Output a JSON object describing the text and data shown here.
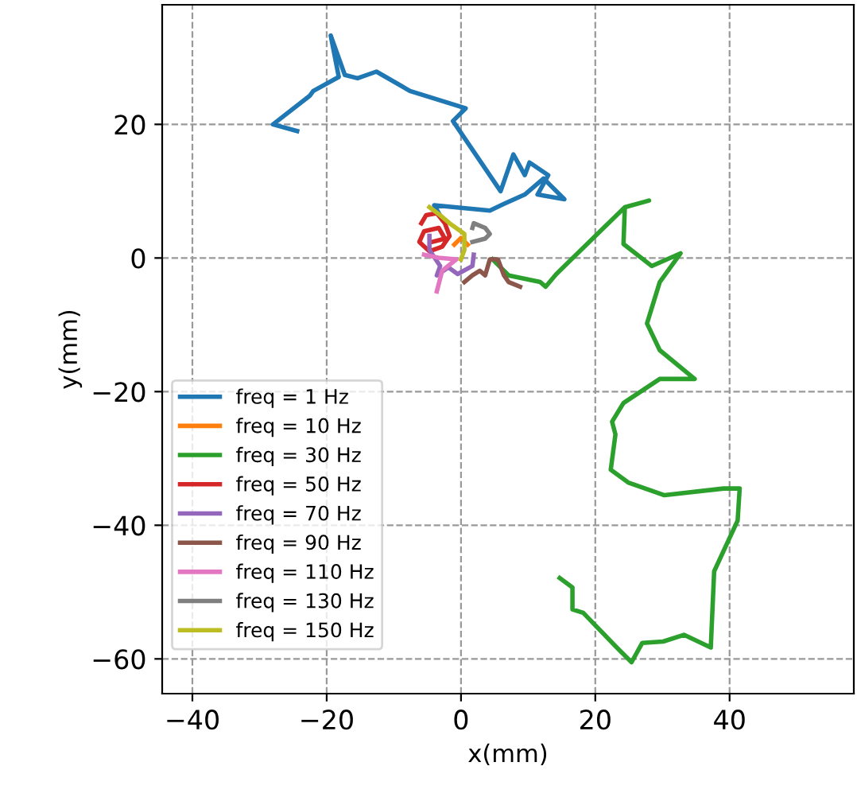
{
  "chart_data": {
    "type": "line",
    "xlabel": "x(mm)",
    "ylabel": "y(mm)",
    "xlim": [
      -44.5,
      58.5
    ],
    "ylim": [
      -65.2,
      37.9
    ],
    "xticks": [
      -40,
      -20,
      0,
      20,
      40
    ],
    "yticks": [
      -60,
      -40,
      -20,
      0,
      20
    ],
    "grid": true,
    "legend": "bottom left",
    "series": [
      {
        "name": "freq = 1 Hz",
        "color": "#1f77b4",
        "x": [
          -24.4,
          -28.0,
          -22.5,
          -22.0,
          -18.2,
          -19.4,
          -17.3,
          -15.4,
          -12.6,
          -7.6,
          0.7,
          -1.2,
          5.9,
          7.8,
          9.5,
          10.2,
          13.0,
          11.4,
          15.4,
          12.3,
          9.5,
          6.4,
          4.3,
          -4.0,
          -3.3
        ],
        "values": [
          19.0,
          20.0,
          24.3,
          25.0,
          27.1,
          33.3,
          27.4,
          26.9,
          27.9,
          25.0,
          22.4,
          20.5,
          10.0,
          15.5,
          12.4,
          14.3,
          12.4,
          9.5,
          8.8,
          11.9,
          9.5,
          8.1,
          7.1,
          7.9,
          6.7
        ]
      },
      {
        "name": "freq = 10 Hz",
        "color": "#ff7f0e",
        "x": [
          -1.0,
          0.0,
          1.0
        ],
        "values": [
          2.0,
          3.0,
          2.0
        ]
      },
      {
        "name": "freq = 30 Hz",
        "color": "#2ca02c",
        "x": [
          4.7,
          7.1,
          11.8,
          12.6,
          14.2,
          24.4,
          28.0,
          24.4,
          24.2,
          28.4,
          32.7,
          29.6,
          27.7,
          29.6,
          34.8,
          29.6,
          24.2,
          22.5,
          23.0,
          22.3,
          24.9,
          30.3,
          39.1,
          41.5,
          41.2,
          37.7,
          37.2,
          33.2,
          30.1,
          27.0,
          25.4,
          23.2,
          18.2,
          16.6,
          16.6,
          14.7
        ],
        "values": [
          -0.2,
          -2.6,
          -3.6,
          -4.3,
          -2.4,
          7.6,
          8.6,
          7.6,
          2.1,
          -1.2,
          0.7,
          -3.6,
          -9.8,
          -13.8,
          -18.1,
          -18.1,
          -21.7,
          -24.5,
          -26.4,
          -31.7,
          -33.6,
          -35.5,
          -34.5,
          -34.5,
          -39.3,
          -46.9,
          -58.3,
          -56.4,
          -57.4,
          -57.6,
          -60.5,
          -58.3,
          -53.1,
          -52.6,
          -49.3,
          -47.9
        ]
      },
      {
        "name": "freq = 50 Hz",
        "color": "#d62728",
        "x": [
          -5.9,
          -5.2,
          -3.6,
          -2.4,
          -1.7,
          -2.8,
          -4.7,
          -6.2,
          -5.5,
          -3.3,
          -2.4,
          -4.3
        ],
        "values": [
          5.2,
          6.4,
          6.7,
          5.2,
          3.3,
          1.7,
          1.0,
          2.4,
          4.0,
          4.5,
          2.9,
          2.4
        ]
      },
      {
        "name": "freq = 70 Hz",
        "color": "#9467bd",
        "x": [
          -4.7,
          -4.7,
          -3.1,
          -3.6,
          -1.9,
          -0.5,
          1.7,
          1.9
        ],
        "values": [
          3.3,
          1.2,
          -1.2,
          -2.6,
          -1.4,
          -2.4,
          -1.2,
          0.5
        ]
      },
      {
        "name": "freq = 90 Hz",
        "color": "#8c564b",
        "x": [
          0.5,
          1.7,
          2.8,
          3.6,
          4.3,
          5.5,
          6.4,
          7.1,
          8.8
        ],
        "values": [
          -3.6,
          -2.6,
          -1.9,
          -2.6,
          -0.2,
          -0.2,
          -2.6,
          -3.6,
          -4.3
        ]
      },
      {
        "name": "freq = 110 Hz",
        "color": "#e377c2",
        "x": [
          -5.5,
          -3.1,
          -0.7,
          -2.8,
          -3.6
        ],
        "values": [
          0.5,
          0.0,
          -0.2,
          -1.9,
          -5.0
        ]
      },
      {
        "name": "freq = 130 Hz",
        "color": "#7f7f7f",
        "x": [
          1.7,
          1.9,
          3.6,
          4.3,
          3.6,
          1.7
        ],
        "values": [
          4.5,
          5.2,
          4.5,
          3.6,
          2.9,
          2.4
        ]
      },
      {
        "name": "freq = 150 Hz",
        "color": "#bcbd22",
        "x": [
          -4.7,
          -3.1,
          -1.7,
          0.5,
          0.5,
          0.0
        ],
        "values": [
          7.6,
          6.4,
          5.2,
          3.6,
          1.2,
          -0.2
        ]
      }
    ]
  }
}
